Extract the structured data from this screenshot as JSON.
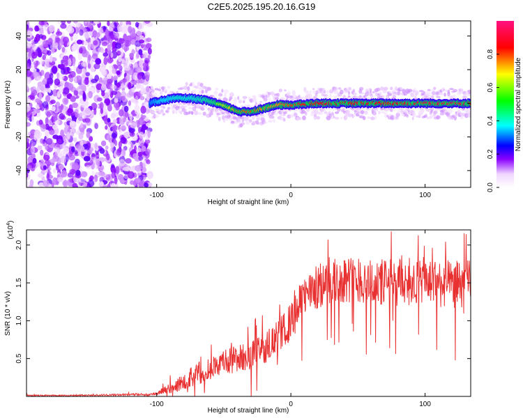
{
  "figure": {
    "title": "C2E5.2025.195.20.16.G19"
  },
  "chart_data": [
    {
      "type": "heatmap",
      "xlabel": "Height of straight line (km)",
      "ylabel": "Frequency (Hz)",
      "xlim": [
        -197,
        134
      ],
      "ylim": [
        -50,
        49
      ],
      "x_ticks": [
        -100,
        0,
        100
      ],
      "y_ticks": [
        -40,
        -20,
        0,
        20,
        40
      ],
      "colorbar": {
        "label": "Normalized spectral amplitude",
        "range": [
          0,
          1
        ],
        "ticks": [
          0.0,
          0.2,
          0.4,
          0.6,
          0.8
        ]
      },
      "noise_region": {
        "x_range": [
          -197,
          -105
        ],
        "note_amplitude": 0.15
      },
      "signal_track": {
        "x": [
          -105,
          -95,
          -85,
          -75,
          -65,
          -55,
          -45,
          -38,
          -30,
          -20,
          -10,
          0,
          20,
          40,
          60,
          80,
          100,
          120,
          134
        ],
        "frequency": [
          0,
          2,
          3,
          3,
          2,
          0,
          -3,
          -5,
          -5,
          -3,
          -1,
          -1,
          0,
          0,
          0,
          0,
          0,
          0,
          0
        ],
        "amplitude": [
          0.3,
          0.4,
          0.45,
          0.45,
          0.5,
          0.6,
          0.7,
          0.8,
          0.8,
          0.75,
          0.75,
          0.8,
          0.85,
          0.85,
          0.85,
          0.85,
          0.9,
          0.9,
          0.9
        ]
      }
    },
    {
      "type": "line",
      "xlabel": "Height of straight line (km)",
      "ylabel": "SNR (10 * v/v)",
      "y_multiplier": "(x10",
      "y_multiplier_exp": "4",
      "y_multiplier_close": ")",
      "xlim": [
        -197,
        134
      ],
      "ylim": [
        0,
        22000
      ],
      "x_ticks": [
        -100,
        0,
        100
      ],
      "y_ticks": [
        5000,
        10000,
        15000,
        20000
      ],
      "y_tick_labels": [
        "0.5",
        "1.0",
        "1.5",
        "2.0"
      ],
      "line_color": "#e83030",
      "series": [
        {
          "x": [
            -197,
            -150,
            -100,
            -95,
            -90,
            -85,
            -80,
            -75,
            -70,
            -65,
            -60,
            -55,
            -50,
            -45,
            -40,
            -35,
            -30,
            -25,
            -20,
            -15,
            -10,
            -5,
            0,
            5,
            10,
            20,
            30,
            40,
            50,
            60,
            70,
            80,
            90,
            100,
            110,
            120,
            134
          ],
          "values": [
            100,
            150,
            300,
            800,
            1000,
            1400,
            2000,
            2500,
            3000,
            3400,
            3700,
            4000,
            4400,
            4800,
            5000,
            5200,
            5500,
            5800,
            6300,
            6900,
            7800,
            8800,
            9800,
            11500,
            13200,
            14500,
            15000,
            15500,
            15500,
            15000,
            15000,
            15000,
            15200,
            15200,
            15000,
            14700,
            15000
          ],
          "noise_amplitude": [
            100,
            100,
            150,
            500,
            700,
            900,
            1100,
            1300,
            1500,
            1600,
            1600,
            1700,
            1700,
            1800,
            1800,
            1900,
            1900,
            2000,
            2000,
            2100,
            2200,
            2300,
            2500,
            2700,
            2900,
            3000,
            3100,
            3100,
            3200,
            3200,
            3200,
            3200,
            3200,
            3200,
            3200,
            3200,
            3200
          ]
        }
      ]
    }
  ]
}
